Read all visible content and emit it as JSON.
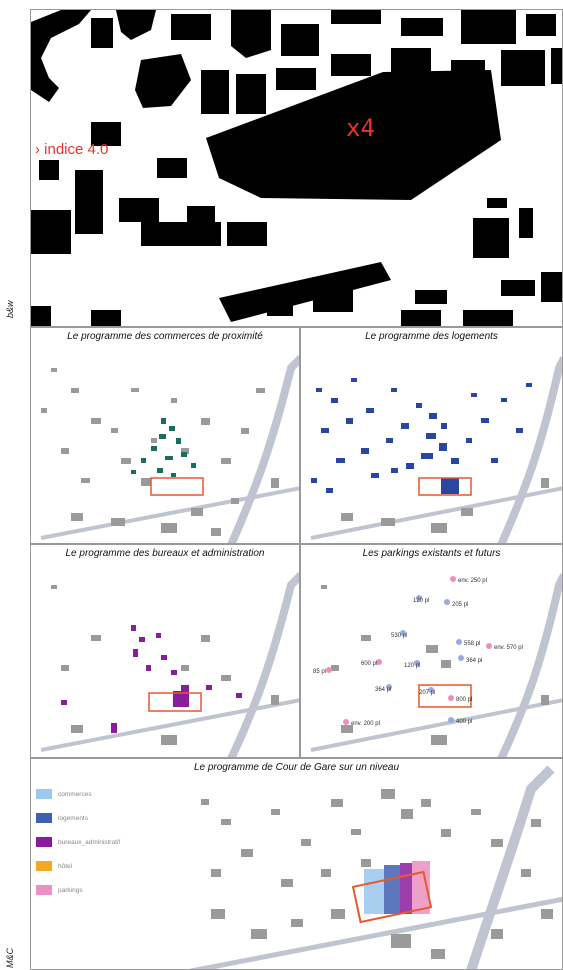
{
  "side_labels": {
    "top": "b&w",
    "bottom": "M&C"
  },
  "hero": {
    "indice": "› indice 4.0",
    "factor": "x4"
  },
  "panels": {
    "commerces": {
      "title": "Le programme des commerces de proximité",
      "color": "#1d6b5f"
    },
    "logements": {
      "title": "Le programme des logements",
      "color": "#2a46a3"
    },
    "bureaux": {
      "title": "Le programme des bureaux et administration",
      "color": "#8a1c9e"
    },
    "parkings": {
      "title": "Les parkings existants et futurs",
      "labels": [
        "env. 250 pl",
        "120 pl",
        "205 pl",
        "530 pl",
        "558 pl",
        "env. 570 pl",
        "600 pl",
        "120 pl",
        "364 pl",
        "85 pl",
        "364 pl",
        "207 pl",
        "800 pl",
        "env. 200 pl",
        "400 pl"
      ]
    },
    "cour": {
      "title": "Le programme de Cour de Gare sur un niveau"
    }
  },
  "legend": [
    {
      "label": "commerces",
      "color": "#9ec9ee"
    },
    {
      "label": "logements",
      "color": "#3f5fb0"
    },
    {
      "label": "bureaux_administratif",
      "color": "#8a1c9e"
    },
    {
      "label": "hôtel",
      "color": "#f5a623"
    },
    {
      "label": "parkings",
      "color": "#ec8fbf"
    }
  ],
  "colors": {
    "outline": "#e8582a",
    "road": "#bfc4d0",
    "building": "#9a9a9a",
    "black": "#000000",
    "hero_red": "#e8352a"
  }
}
